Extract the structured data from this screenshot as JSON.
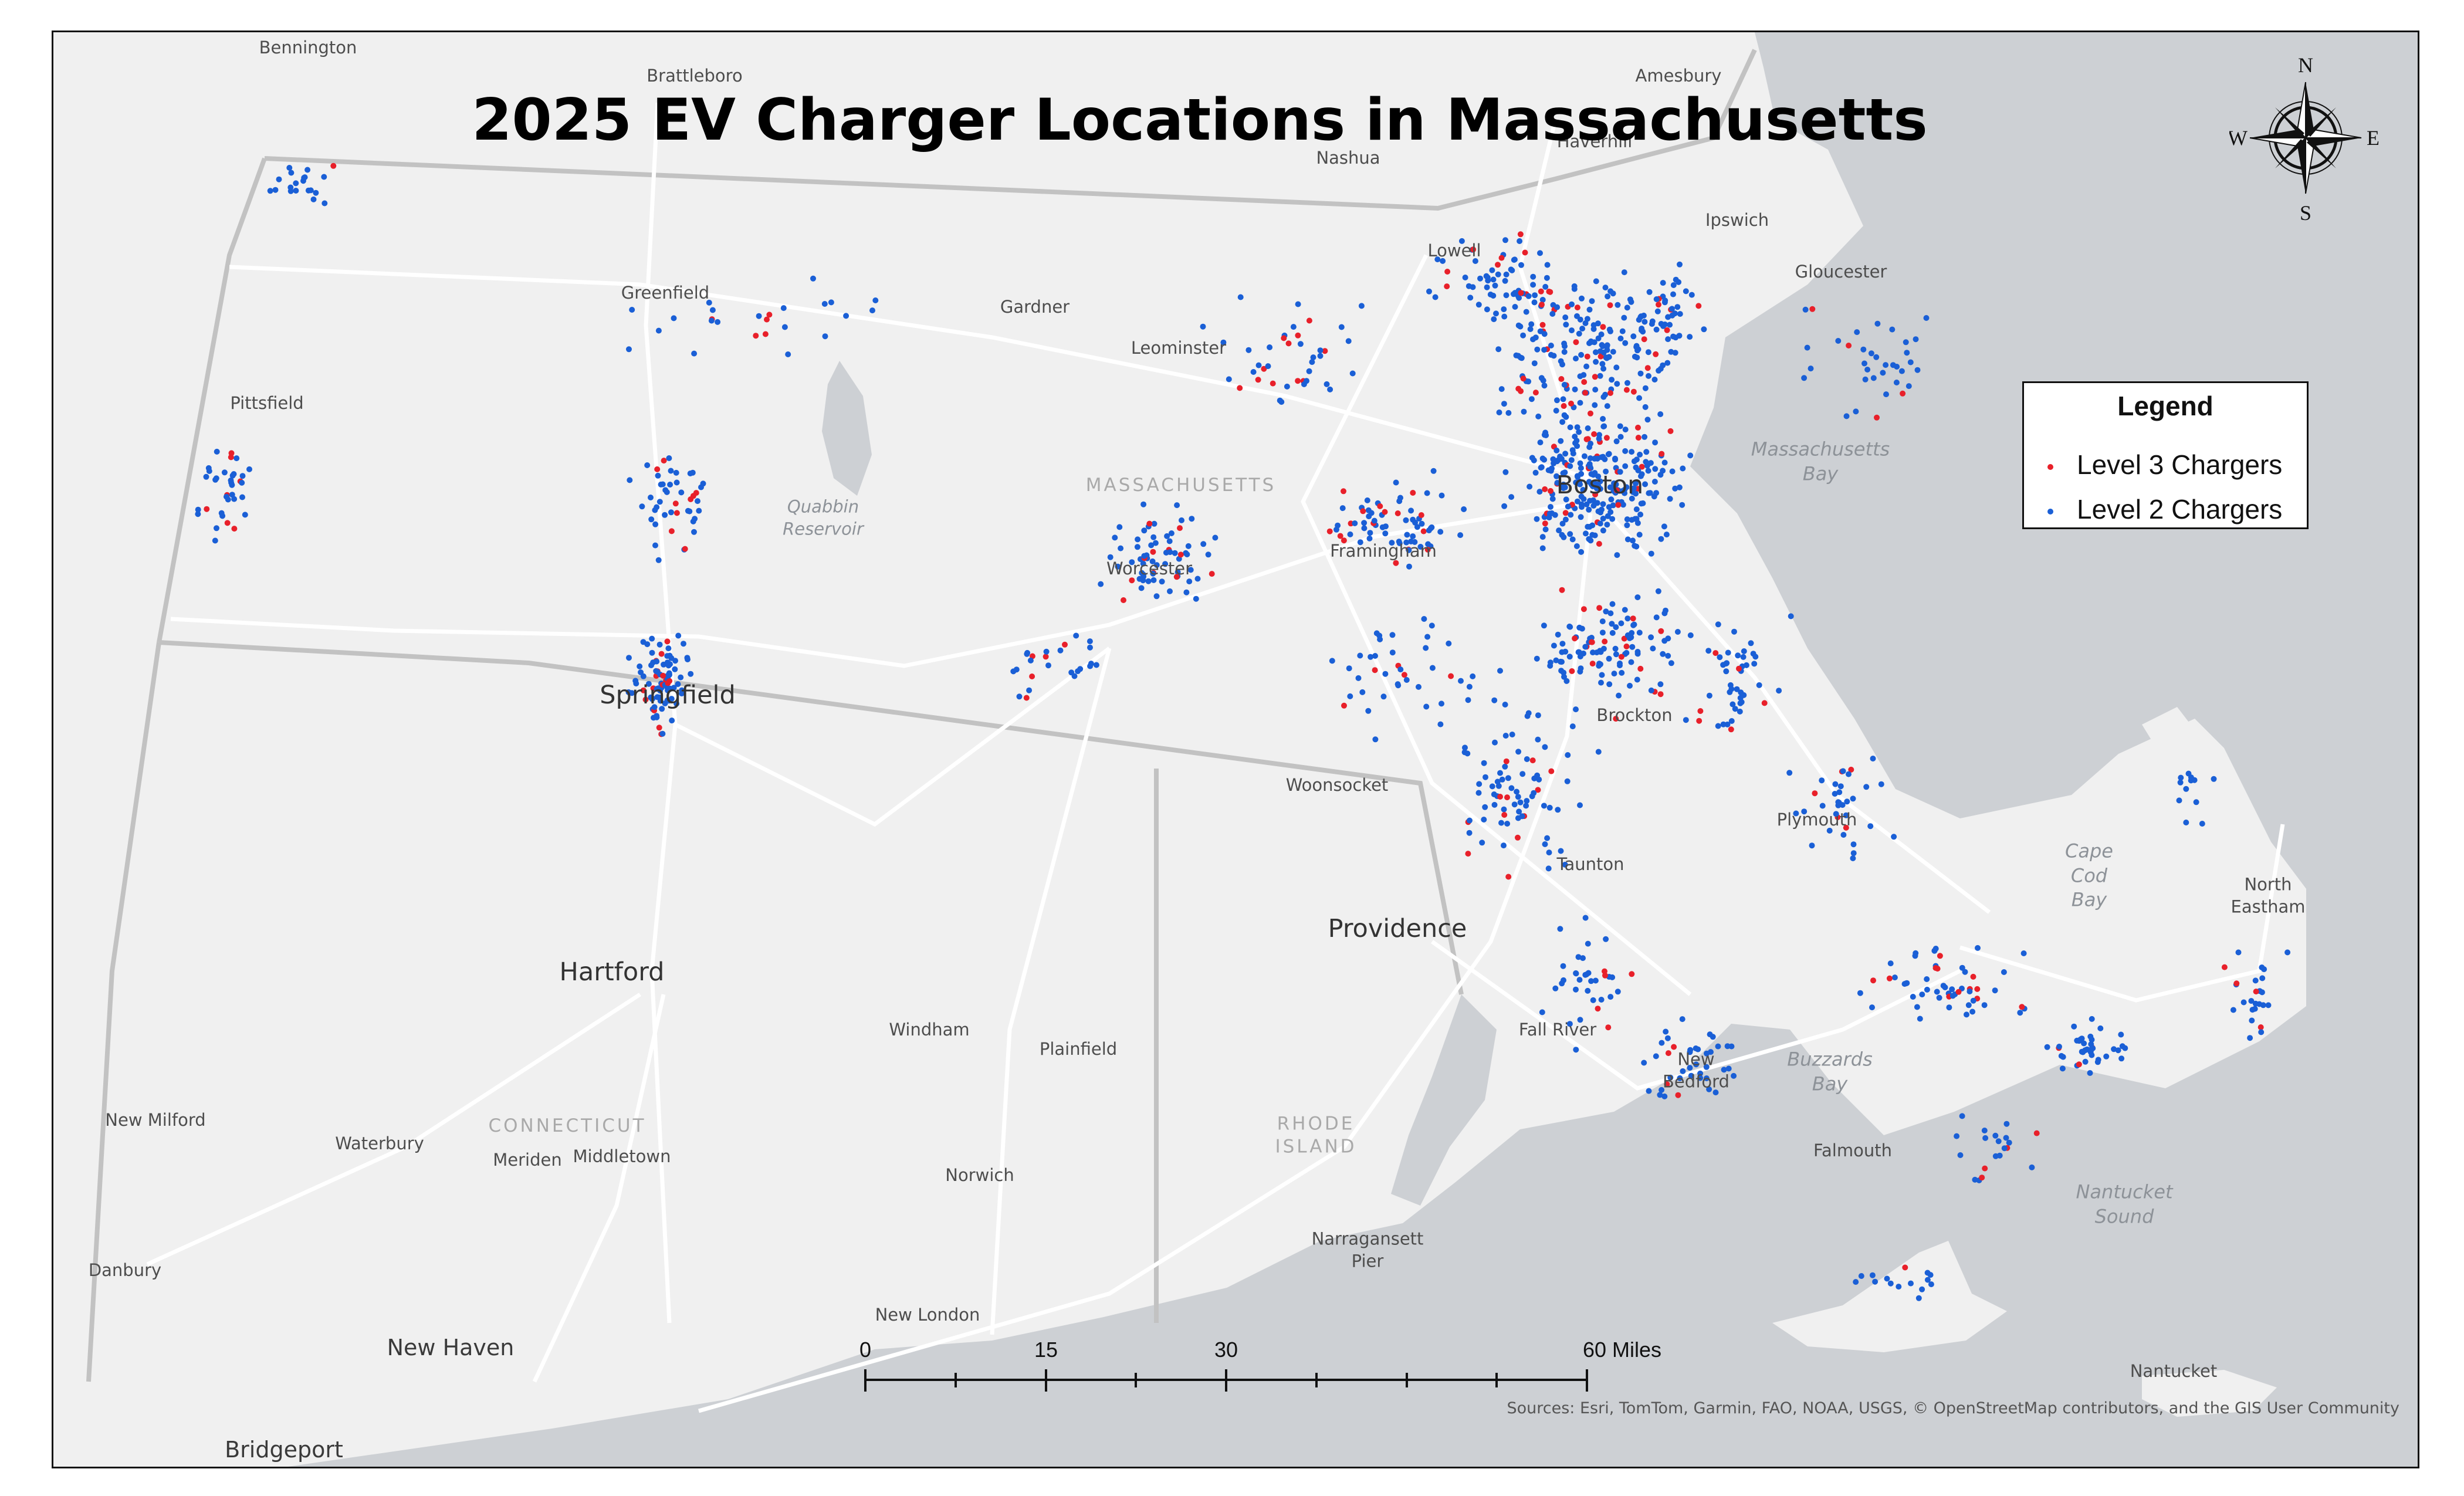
{
  "title": "2025 EV Charger Locations in Massachusetts",
  "legend": {
    "title": "Legend",
    "items": [
      {
        "label": "Level 3 Chargers",
        "color": "#e8202a"
      },
      {
        "label": "Level 2 Chargers",
        "color": "#1a5fd6"
      }
    ]
  },
  "colors": {
    "land": "#f0f0f0",
    "water": "#cdd0d4",
    "roads": "#ffffff",
    "borders": "#c2c2c2"
  },
  "north_arrow": {
    "n": "N",
    "s": "S",
    "e": "E",
    "w": "W"
  },
  "scale_bar": {
    "labels": [
      "0",
      "15",
      "30",
      "60 Miles"
    ]
  },
  "attribution": "Sources: Esri, TomTom, Garmin, FAO, NOAA, USGS, © OpenStreetMap contributors, and the GIS User Community",
  "places": {
    "bennington": "Bennington",
    "brattleboro": "Brattleboro",
    "amesbury": "Amesbury",
    "haverhill": "Haverhill",
    "nashua": "Nashua",
    "ipswich": "Ipswich",
    "lowell": "Lowell",
    "gloucester": "Gloucester",
    "greenfield": "Greenfield",
    "gardner": "Gardner",
    "leominster": "Leominster",
    "pittsfield": "Pittsfield",
    "boston": "Boston",
    "framingham": "Framingham",
    "worcester": "Worcester",
    "springfield": "Springfield",
    "brockton": "Brockton",
    "woonsocket": "Woonsocket",
    "plymouth": "Plymouth",
    "taunton": "Taunton",
    "providence": "Providence",
    "north_eastham": "North\nEastham",
    "hartford": "Hartford",
    "windham": "Windham",
    "plainfield": "Plainfield",
    "fall_river": "Fall River",
    "new_bedford": "New\nBedford",
    "new_milford": "New Milford",
    "waterbury": "Waterbury",
    "meriden": "Meriden",
    "middletown": "Middletown",
    "norwich": "Norwich",
    "falmouth": "Falmouth",
    "narragansett_pier": "Narragansett\nPier",
    "danbury": "Danbury",
    "new_london": "New London",
    "new_haven": "New Haven",
    "nantucket": "Nantucket",
    "bridgeport": "Bridgeport"
  },
  "regions": {
    "massachusetts": "MASSACHUSETTS",
    "connecticut": "CONNECTICUT",
    "rhode_island": "RHODE\nISLAND"
  },
  "water_labels": {
    "quabbin": "Quabbin\nReservoir",
    "mass_bay": "Massachusetts\nBay",
    "cape_cod_bay": "Cape\nCod\nBay",
    "buzzards_bay": "Buzzards\nBay",
    "nantucket_sound": "Nantucket\nSound"
  }
}
